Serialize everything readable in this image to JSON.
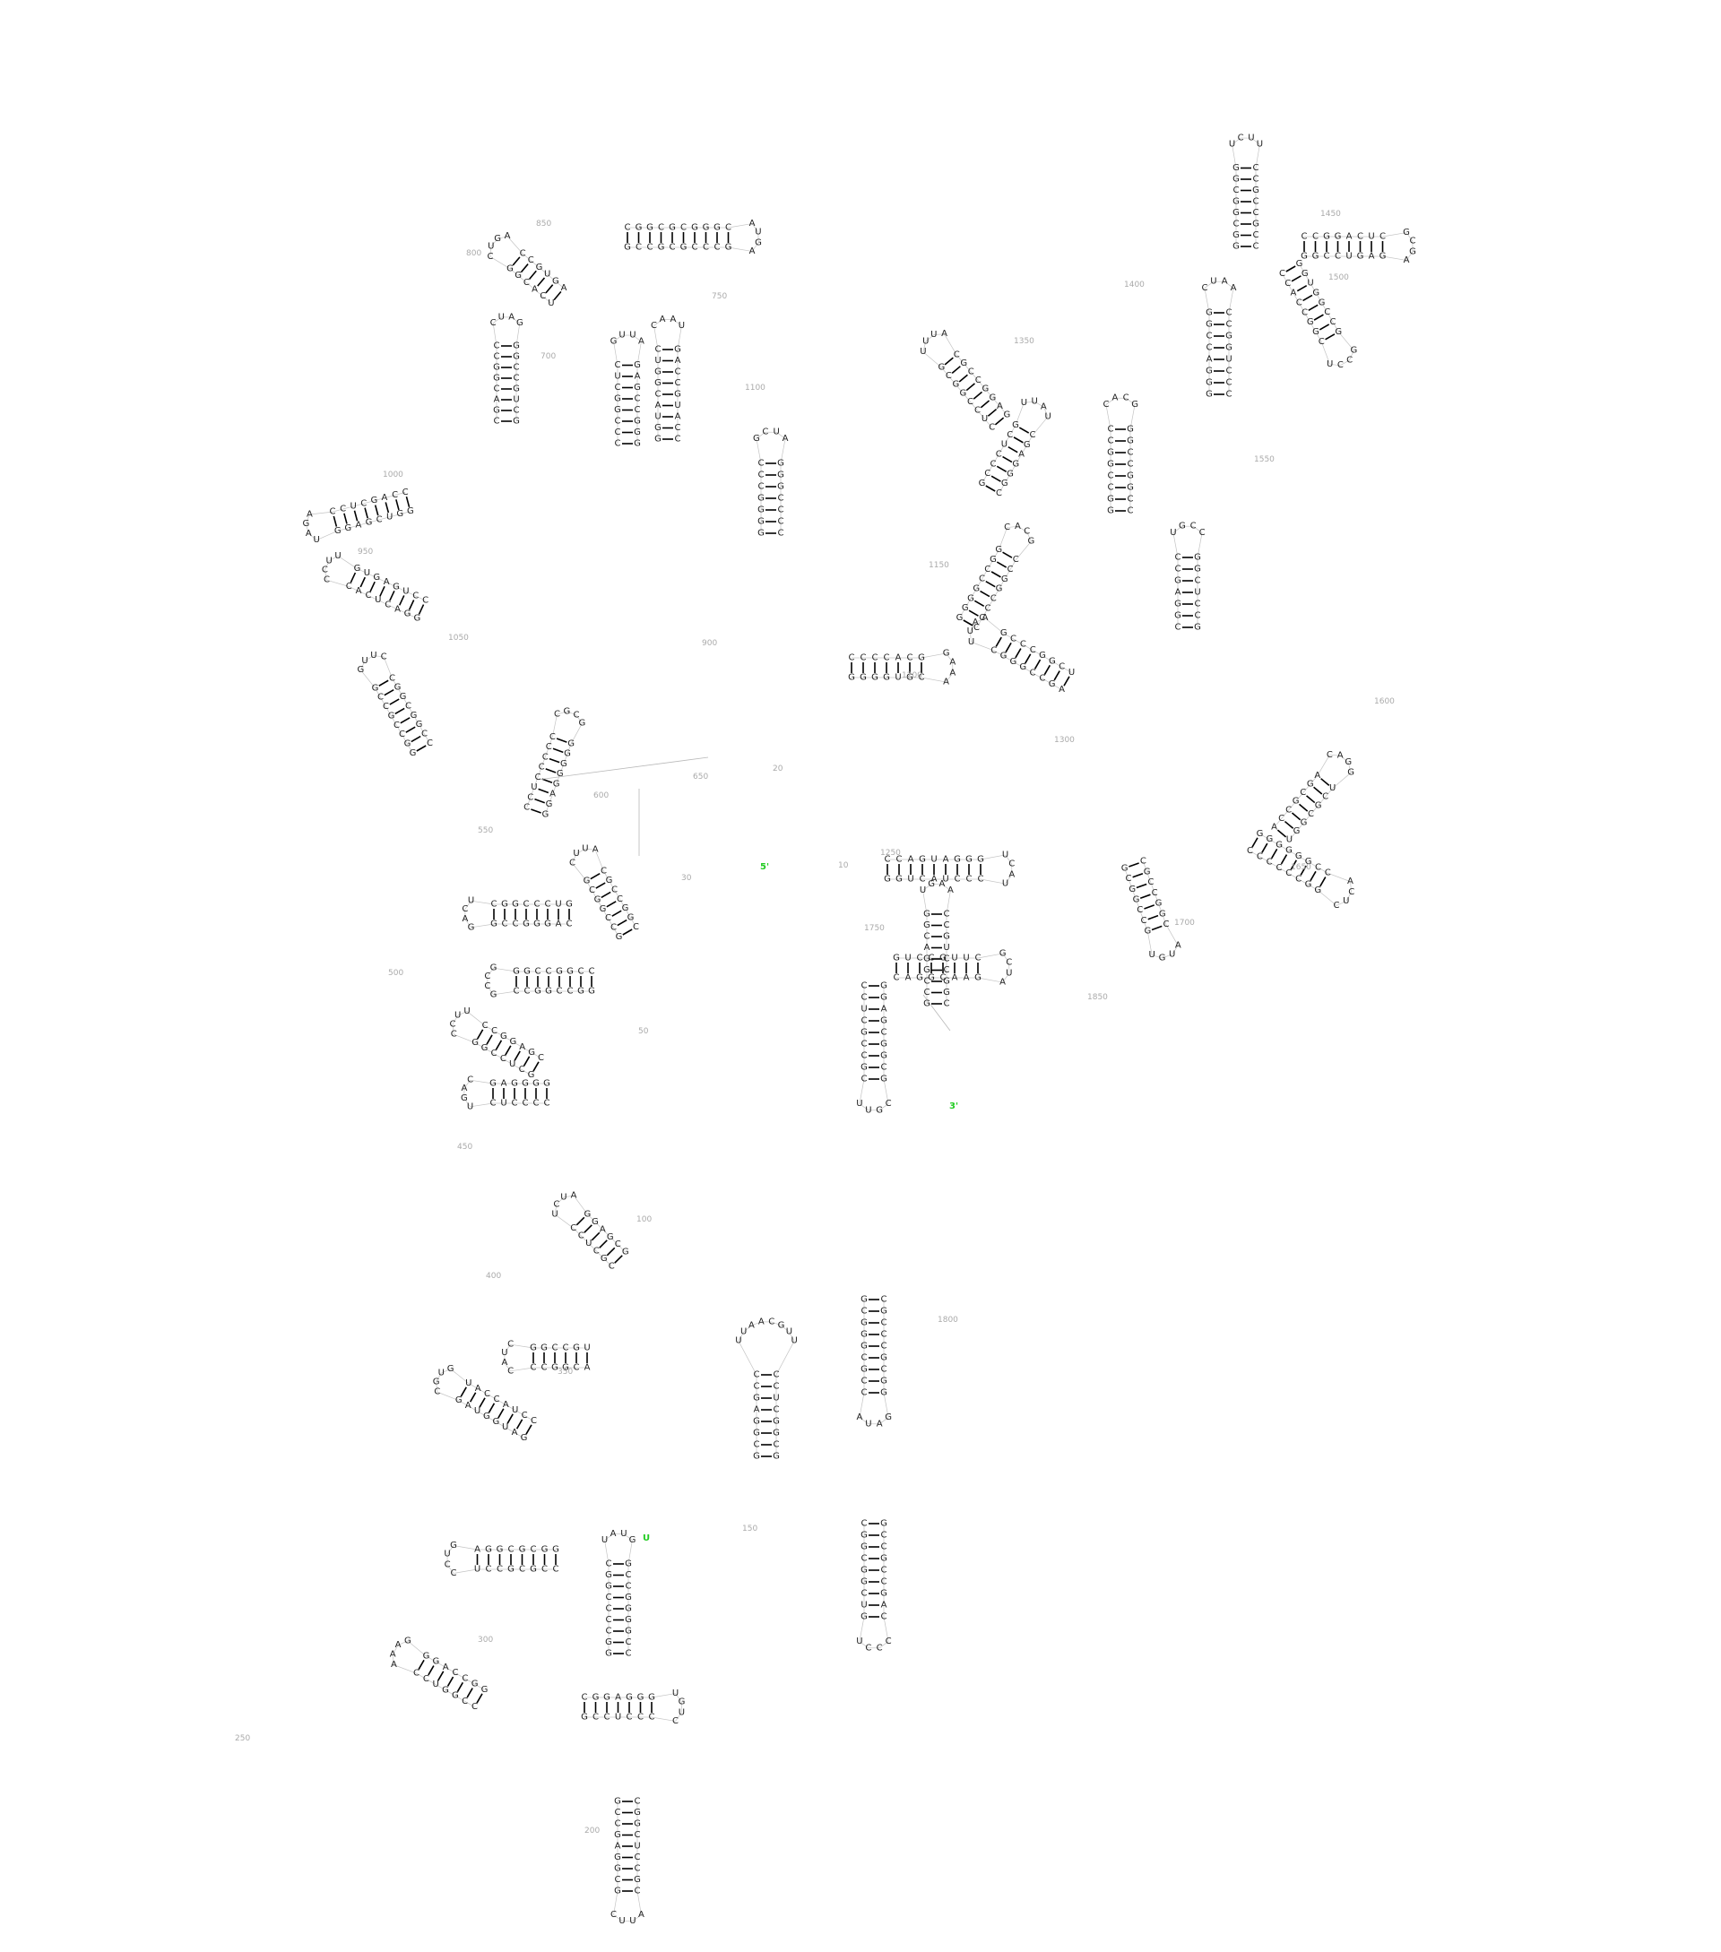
{
  "diagram": {
    "colors": {
      "nucleotide": "#222222",
      "index": "#aaaaaa",
      "ends": "#22cc22",
      "backbone": "#c4c4c4",
      "pair": "#000000"
    },
    "ends": {
      "five_prime": "5'",
      "three_prime": "3'"
    },
    "index_labels": [
      "10",
      "20",
      "30",
      "50",
      "100",
      "150",
      "200",
      "250",
      "300",
      "350",
      "400",
      "450",
      "500",
      "550",
      "600",
      "650",
      "700",
      "750",
      "800",
      "850",
      "900",
      "950",
      "1000",
      "1050",
      "1100",
      "1150",
      "1200",
      "1250",
      "1300",
      "1350",
      "1400",
      "1450",
      "1500",
      "1550",
      "1600",
      "1650",
      "1700",
      "1750",
      "1800",
      "1850"
    ],
    "stems": [
      {
        "top": "GCGGCUCC",
        "bottom": "CCGAGGCG",
        "loop": "UUGCAAUU"
      },
      {
        "top": "CCGGGGCCG",
        "bottom": "CGGCCCCGG",
        "loop": "GUAU"
      },
      {
        "top": "GGCGCGGA",
        "bottom": "UCCGCGCC",
        "loop": "GUCC"
      },
      {
        "top": "GCCUCCC",
        "bottom": "GGGAGGC",
        "loop": "CUGU"
      },
      {
        "top": "GGCCAGG",
        "bottom": "CCUGGCC",
        "loop": "GAAA"
      },
      {
        "top": "UGCCGG",
        "bottom": "CCGGCA",
        "loop": "CUAC"
      },
      {
        "top": "CCUACCAU",
        "bottom": "GAUGGUAG",
        "loop": "GUGC"
      },
      {
        "top": "GCGAGG",
        "bottom": "CCUCGC",
        "loop": "AUCU"
      },
      {
        "top": "GGGGAG",
        "bottom": "CUCCCC",
        "loop": "CAGU"
      },
      {
        "top": "CGAGGCC",
        "bottom": "GGCCUCG",
        "loop": "UUCC"
      },
      {
        "top": "CCGGCCGG",
        "bottom": "CCGGCCGG",
        "loop": "GCCG"
      },
      {
        "top": "CGGCCGC",
        "bottom": "GCGGCCG",
        "loop": "AUUC"
      },
      {
        "top": "GUCCCGGC",
        "bottom": "GCCGGGAC",
        "loop": "UCAG"
      },
      {
        "top": "GGAGGGGG",
        "bottom": "CCCCCUCC",
        "loop": "GCGC"
      },
      {
        "top": "CCGGCGGC",
        "bottom": "GCCGCCGG",
        "loop": "CUUG"
      },
      {
        "top": "CCUGAGUG",
        "bottom": "CACUCAGG",
        "loop": "UUCC"
      },
      {
        "top": "CCAGCUCC",
        "bottom": "GGAGCUGG",
        "loop": "AGAU"
      },
      {
        "top": "GCUGCCGG",
        "bottom": "CCGGCAGC",
        "loop": "GAUC"
      },
      {
        "top": "AGUGCC",
        "bottom": "GGCACU",
        "loop": "AGUC"
      },
      {
        "top": "GGGCCGAG",
        "bottom": "CUCGGCCC",
        "loop": "AUUG"
      },
      {
        "top": "CCAUGCCAG",
        "bottom": "CUGGCAUGG",
        "loop": "UAAC"
      },
      {
        "top": "GCCGCGCCCG",
        "bottom": "CGGGCGCGGC",
        "loop": "AGUA"
      },
      {
        "top": "CCCCGGG",
        "bottom": "CCCGGGG",
        "loop": "AUCG"
      },
      {
        "top": "GGGGUGC",
        "bottom": "GCACCCC",
        "loop": "AAAG"
      },
      {
        "top": "CCCCGGCC",
        "bottom": "GGCCGGGG",
        "loop": "GCAC"
      },
      {
        "top": "CGGGAGC",
        "bottom": "GCUCCCG",
        "loop": "UAUU"
      },
      {
        "top": "GAGGCCGC",
        "bottom": "GCGGCCUC",
        "loop": "AUUU"
      },
      {
        "top": "GCCUCGG",
        "bottom": "CCGAGGC",
        "loop": "CCGU"
      },
      {
        "top": "CCCUGGCC",
        "bottom": "GGCCAGGG",
        "loop": "AAUC"
      },
      {
        "top": "CCGCCGCC",
        "bottom": "GGCGGCGG",
        "loop": "UUCU"
      },
      {
        "top": "GGCCUGAG",
        "bottom": "CUCAGGCC",
        "loop": "AGCG"
      },
      {
        "top": "CCACCGGC",
        "bottom": "GCCGGUGG",
        "loop": "UCCG"
      },
      {
        "top": "UGGCGCU",
        "bottom": "AGCGCCA",
        "loop": "GGAC"
      },
      {
        "top": "CCCCCCGG",
        "bottom": "CCGGGGGG",
        "loop": "CUCA"
      },
      {
        "top": "GCGGCCG",
        "bottom": "CGGCCGC",
        "loop": "UGUA"
      },
      {
        "top": "CCGGCCGG",
        "bottom": "CCGGCCGG",
        "loop": "GCAC"
      },
      {
        "top": "UCGGCCCG",
        "bottom": "CGGGCCGA",
        "loop": "AAUU"
      },
      {
        "top": "GGUCAUCCC",
        "bottom": "GGGAUGACC",
        "loop": "UACU"
      },
      {
        "top": "CAGGCAAG",
        "bottom": "CUUGCCUG",
        "loop": "AUCG"
      },
      {
        "top": "CCUCGCCGC",
        "bottom": "GCGGCGAGG",
        "loop": "UUGC"
      },
      {
        "top": "GCGGGCGCC",
        "bottom": "GGCGCCCGC",
        "loop": "AUAG"
      },
      {
        "top": "CGGCGGCUG",
        "bottom": "CAGCCGCCG",
        "loop": "UCCC"
      },
      {
        "top": "CGGCCUGCC",
        "bottom": "GGCAGGCCG",
        "loop": "AAGU"
      },
      {
        "top": "GCCGAGGCG",
        "bottom": "CGCCUCGGC",
        "loop": "CUUA"
      }
    ]
  }
}
